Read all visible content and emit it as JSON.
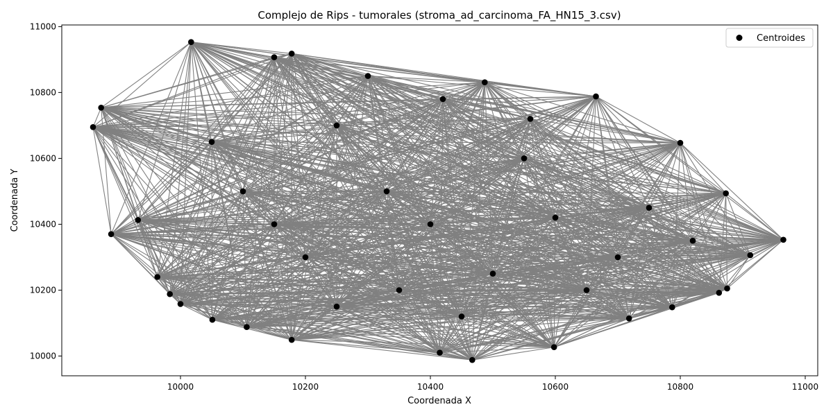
{
  "chart_data": {
    "type": "scatter",
    "title": "Complejo de Rips - tumorales (stroma_ad_carcinoma_FA_HN15_3.csv)",
    "xlabel": "Coordenada X",
    "ylabel": "Coordenada Y",
    "xlim": [
      9810,
      11020
    ],
    "ylim": [
      9940,
      11005
    ],
    "xticks": [
      10000,
      10200,
      10400,
      10600,
      10800,
      11000
    ],
    "yticks": [
      10000,
      10200,
      10400,
      10600,
      10800,
      11000
    ],
    "xtick_labels": [
      "10000",
      "10200",
      "10400",
      "10600",
      "10800",
      "11000"
    ],
    "ytick_labels": [
      "10000",
      "10200",
      "10400",
      "10600",
      "10800",
      "11000"
    ],
    "grid": false,
    "legend": {
      "placement": "top-right",
      "entries": [
        {
          "label": "Centroides",
          "color": "#000000"
        }
      ]
    },
    "edge_color": "#808080",
    "point_color": "#000000",
    "points": [
      [
        10017,
        10953
      ],
      [
        10178,
        10918
      ],
      [
        10150,
        10907
      ],
      [
        10487,
        10831
      ],
      [
        10665,
        10788
      ],
      [
        9873,
        10754
      ],
      [
        9860,
        10695
      ],
      [
        10800,
        10647
      ],
      [
        10873,
        10494
      ],
      [
        10965,
        10353
      ],
      [
        10912,
        10306
      ],
      [
        10875,
        10205
      ],
      [
        10862,
        10192
      ],
      [
        10787,
        10148
      ],
      [
        10718,
        10114
      ],
      [
        10598,
        10027
      ],
      [
        10467,
        9988
      ],
      [
        10415,
        10010
      ],
      [
        10178,
        10049
      ],
      [
        10106,
        10088
      ],
      [
        10051,
        10110
      ],
      [
        10000,
        10158
      ],
      [
        9983,
        10188
      ],
      [
        9963,
        10240
      ],
      [
        9932,
        10413
      ],
      [
        9889,
        10370
      ],
      [
        10250,
        10700
      ],
      [
        10330,
        10500
      ],
      [
        10420,
        10780
      ],
      [
        10550,
        10600
      ],
      [
        10600,
        10420
      ],
      [
        10700,
        10300
      ],
      [
        10500,
        10250
      ],
      [
        10350,
        10200
      ],
      [
        10200,
        10300
      ],
      [
        10100,
        10500
      ],
      [
        10050,
        10650
      ],
      [
        10250,
        10150
      ],
      [
        10450,
        10120
      ],
      [
        10650,
        10200
      ],
      [
        10750,
        10450
      ],
      [
        10560,
        10720
      ],
      [
        10300,
        10850
      ],
      [
        10150,
        10400
      ],
      [
        10400,
        10400
      ],
      [
        10820,
        10350
      ]
    ]
  }
}
